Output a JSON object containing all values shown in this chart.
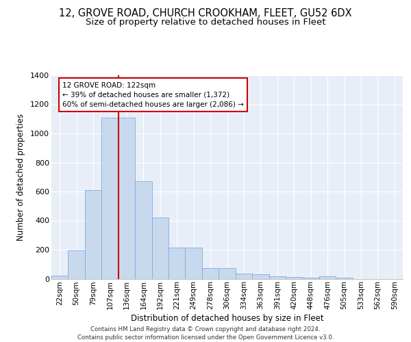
{
  "title1": "12, GROVE ROAD, CHURCH CROOKHAM, FLEET, GU52 6DX",
  "title2": "Size of property relative to detached houses in Fleet",
  "xlabel": "Distribution of detached houses by size in Fleet",
  "ylabel": "Number of detached properties",
  "categories": [
    "22sqm",
    "50sqm",
    "79sqm",
    "107sqm",
    "136sqm",
    "164sqm",
    "192sqm",
    "221sqm",
    "249sqm",
    "278sqm",
    "306sqm",
    "334sqm",
    "363sqm",
    "391sqm",
    "420sqm",
    "448sqm",
    "476sqm",
    "505sqm",
    "533sqm",
    "562sqm",
    "590sqm"
  ],
  "values": [
    20,
    195,
    610,
    1110,
    1110,
    670,
    420,
    215,
    215,
    75,
    75,
    35,
    30,
    15,
    10,
    5,
    15,
    5,
    0,
    0,
    0
  ],
  "bar_color": "#c8d9ee",
  "bar_edgecolor": "#7aabe0",
  "vline_color": "#cc0000",
  "annotation_line1": "12 GROVE ROAD: 122sqm",
  "annotation_line2": "← 39% of detached houses are smaller (1,372)",
  "annotation_line3": "60% of semi-detached houses are larger (2,086) →",
  "annotation_box_facecolor": "#ffffff",
  "annotation_box_edgecolor": "#cc0000",
  "ylim": [
    0,
    1400
  ],
  "yticks": [
    0,
    200,
    400,
    600,
    800,
    1000,
    1200,
    1400
  ],
  "background_color": "#e8eef8",
  "grid_color": "#ffffff",
  "footer": "Contains HM Land Registry data © Crown copyright and database right 2024.\nContains public sector information licensed under the Open Government Licence v3.0.",
  "title1_fontsize": 10.5,
  "title2_fontsize": 9.5,
  "xlabel_fontsize": 8.5,
  "ylabel_fontsize": 8.5,
  "tick_fontsize": 7.5,
  "footer_fontsize": 6.2
}
